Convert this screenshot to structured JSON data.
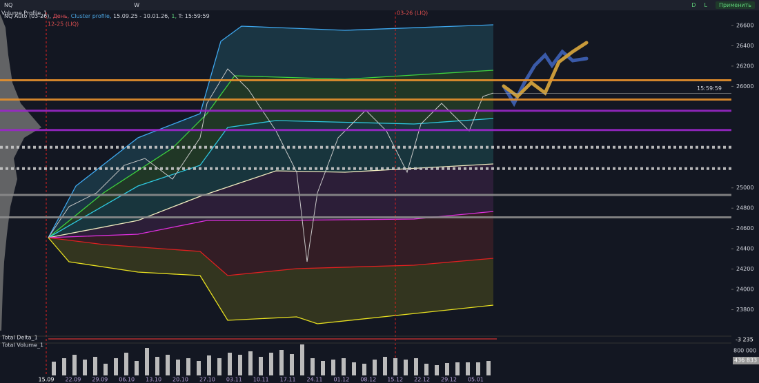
{
  "toolbar": {
    "symbol": "NQ",
    "timeframe": "W",
    "right": [
      "D",
      "L",
      "Применить"
    ]
  },
  "chart_info": {
    "instrument": "NQ Auto (03-26),",
    "period": "День,",
    "study": "Cluster profile,",
    "range": "15.09.25 - 10.01.26,",
    "step": "1,",
    "time": "T: 15:59:59"
  },
  "volume_profile_label": "Volume Profile_1",
  "rollover_markers": [
    "12-25 (LIQ)",
    "03-26 (LIQ)"
  ],
  "price_axis": {
    "ylim": [
      23600,
      26600
    ],
    "yticks": [
      26600,
      26400,
      26200,
      26000,
      25000,
      24800,
      24600,
      24400,
      24200,
      24000,
      23800
    ]
  },
  "levels": [
    {
      "value": 26060,
      "color": "#e8912d",
      "style": "solid"
    },
    {
      "value": 25870,
      "color": "#e8912d",
      "style": "solid"
    },
    {
      "value": 25760,
      "color": "#9b27c9",
      "style": "solid"
    },
    {
      "value": 25570,
      "color": "#9b27c9",
      "style": "solid"
    },
    {
      "value": 25400,
      "color": "#c8c8c8",
      "style": "dotted"
    },
    {
      "value": 25190,
      "color": "#c8c8c8",
      "style": "dotted"
    },
    {
      "value": 24930,
      "color": "#8c8c8c",
      "style": "solid"
    },
    {
      "value": 24710,
      "color": "#8c8c8c",
      "style": "solid"
    }
  ],
  "current_price": {
    "value": 25931.75,
    "time": "15:59:59"
  },
  "dates": [
    "15.09",
    "22.09",
    "29.09",
    "06.10",
    "13.10",
    "20.10",
    "27.10",
    "03.11",
    "10.11",
    "17.11",
    "24.11",
    "01.12",
    "08.12",
    "15.12",
    "22.12",
    "29.12",
    "05.01"
  ],
  "delta_panel": {
    "label": "Total Delta_1",
    "value": -3235,
    "value_label": "-3 235"
  },
  "volume_panel": {
    "label": "Total Volume_1",
    "tick": {
      "value": 800000,
      "label": "800 000"
    },
    "value": 436833,
    "value_label": "436 833"
  }
}
